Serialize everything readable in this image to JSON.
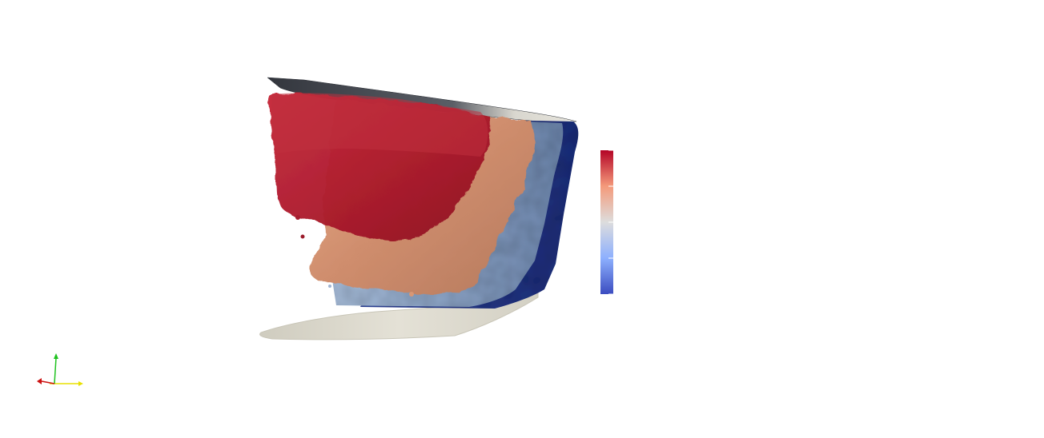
{
  "scene": {
    "colormap": {
      "name": "cool-to-warm",
      "colors": [
        "#3b4cc0",
        "#8db0fe",
        "#dddddd",
        "#f49a7b",
        "#b40426"
      ],
      "tick_count": 5
    },
    "isosurface_colors": {
      "dark_blue": "#2b3d8f",
      "light_blue": "#8ea9cf",
      "salmon": "#e7a682",
      "red": "#b0182b",
      "outline": "#dcd9cc",
      "top_cap": "#3a3d45"
    },
    "axes": {
      "x_color": "#e8e000",
      "y_color": "#1fc21f",
      "z_color": "#cc1111"
    }
  }
}
